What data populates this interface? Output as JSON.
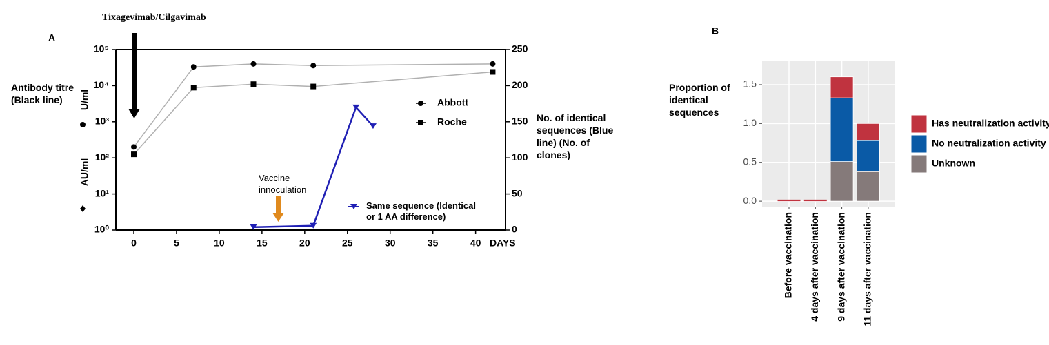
{
  "chart_data": [
    {
      "type": "line",
      "panel_label": "A",
      "title": "Tixagevimab/Cilgavimab",
      "side_label": "Antibody titre (Black line)",
      "ylabel_units": [
        "AU/ml",
        "U/ml"
      ],
      "y2label": "No. of identical sequences (Blue line) (No. of clones)",
      "xlabel": "DAYS",
      "annotation": {
        "text": "Vaccine innoculation",
        "x": 17
      },
      "xlim": [
        -2.1,
        43.5
      ],
      "xticks": [
        0,
        5,
        10,
        15,
        20,
        25,
        30,
        35,
        40
      ],
      "ylim": [
        1,
        100000
      ],
      "log_y": true,
      "yticks": [
        {
          "value": 1,
          "label": "10⁰"
        },
        {
          "value": 10,
          "label": "10¹"
        },
        {
          "value": 100,
          "label": "10²"
        },
        {
          "value": 1000,
          "label": "10³"
        },
        {
          "value": 10000,
          "label": "10⁴"
        },
        {
          "value": 100000,
          "label": "10⁵"
        }
      ],
      "y2lim": [
        0,
        250
      ],
      "y2ticks": [
        0,
        50,
        100,
        150,
        200,
        250
      ],
      "grid": false,
      "series": [
        {
          "name": "Abbott",
          "color": "#b0b0b0",
          "marker_color": "#000000",
          "marker": "circle",
          "x": [
            0,
            7,
            14,
            21,
            42
          ],
          "values": [
            200,
            33000,
            40000,
            36000,
            40000
          ]
        },
        {
          "name": "Roche",
          "color": "#b0b0b0",
          "marker_color": "#000000",
          "marker": "square",
          "x": [
            0,
            7,
            14,
            21,
            42
          ],
          "values": [
            125,
            8800,
            11000,
            9500,
            24000
          ]
        },
        {
          "name": "Same sequence (Identical or 1 AA difference)",
          "color": "#1f1fb4",
          "marker_color": "#1f1fb4",
          "marker": "triangle",
          "axis": "y2",
          "x": [
            14,
            21,
            26,
            28
          ],
          "values": [
            4,
            6,
            170,
            144
          ]
        }
      ]
    },
    {
      "type": "stacked_bar",
      "panel_label": "B",
      "ylabel": "Proportion of identical sequences",
      "categories": [
        "Before vaccination",
        "4 days after vaccination",
        "9 days after vaccination",
        "11 days after vaccination"
      ],
      "ylim": [
        -0.07,
        1.81
      ],
      "yticks": [
        {
          "value": 0,
          "label": "0.0"
        },
        0.5,
        {
          "value": 1,
          "label": "1.0"
        },
        1.5
      ],
      "grid": true,
      "series": [
        {
          "name": "Unknown",
          "color": "#857a7a",
          "values": [
            0,
            0,
            0.51,
            0.38
          ]
        },
        {
          "name": "No neutralization activity",
          "color": "#0a5aa6",
          "values": [
            0,
            0,
            0.82,
            0.4
          ]
        },
        {
          "name": "Has neutralization activity",
          "color": "#c0333f",
          "values": [
            0.02,
            0.02,
            0.27,
            0.22
          ]
        }
      ]
    }
  ]
}
